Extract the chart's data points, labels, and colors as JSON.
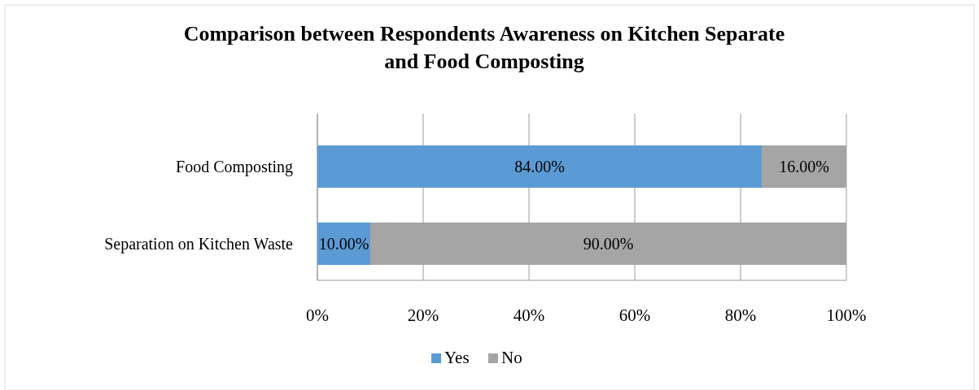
{
  "chart_data": {
    "type": "bar",
    "orientation": "horizontal",
    "stacked": true,
    "title": "Comparison between Respondents Awareness on Kitchen Separate\nand Food Composting",
    "categories": [
      "Food Composting",
      "Separation on Kitchen Waste"
    ],
    "series": [
      {
        "name": "Yes",
        "color": "#5b9bd5",
        "values": [
          84,
          10
        ],
        "value_labels": [
          "84.00%",
          "10.00%"
        ]
      },
      {
        "name": "No",
        "color": "#a5a5a5",
        "values": [
          16,
          90
        ],
        "value_labels": [
          "16.00%",
          "90.00%"
        ]
      }
    ],
    "xlim": [
      0,
      100
    ],
    "xticks": [
      {
        "value": 0,
        "label": "0%"
      },
      {
        "value": 20,
        "label": "20%"
      },
      {
        "value": 40,
        "label": "40%"
      },
      {
        "value": 60,
        "label": "60%"
      },
      {
        "value": 80,
        "label": "80%"
      },
      {
        "value": 100,
        "label": "100%"
      }
    ],
    "grid": "x",
    "legend": "bottom"
  }
}
